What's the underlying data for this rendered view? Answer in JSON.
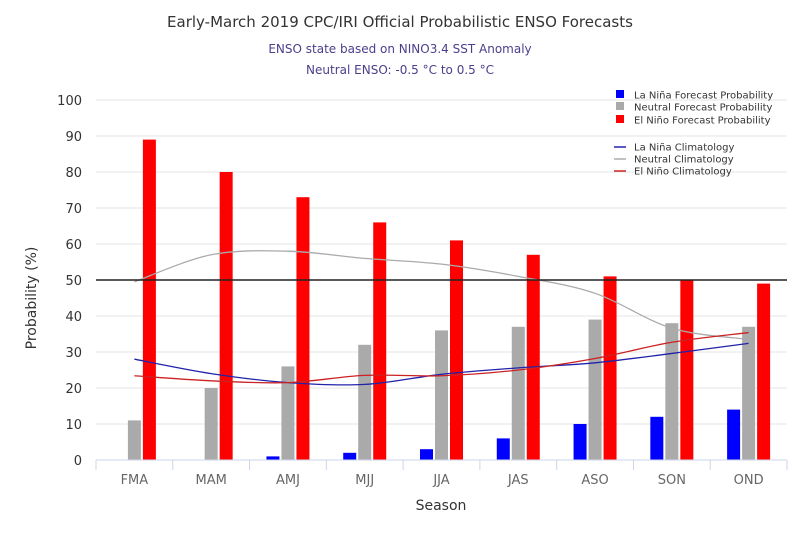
{
  "chart_data": {
    "type": "bar",
    "title": "Early-March 2019 CPC/IRI Official Probabilistic ENSO Forecasts",
    "subtitle_lines": [
      "ENSO state based on NINO3.4 SST Anomaly",
      "Neutral ENSO: -0.5 °C to 0.5 °C"
    ],
    "xlabel": "Season",
    "ylabel": "Probability (%)",
    "ylim": [
      0,
      100
    ],
    "yticks": [
      0,
      10,
      20,
      30,
      40,
      50,
      60,
      70,
      80,
      90,
      100
    ],
    "grid": true,
    "reference_line": 50,
    "legend_position": "top-right",
    "categories": [
      "FMA",
      "MAM",
      "AMJ",
      "MJJ",
      "JJA",
      "JAS",
      "ASO",
      "SON",
      "OND"
    ],
    "series": [
      {
        "name": "La Niña Forecast Probability",
        "kind": "bar",
        "color": "#0000ff",
        "values": [
          0,
          0,
          1,
          2,
          3,
          6,
          10,
          12,
          14
        ]
      },
      {
        "name": "Neutral Forecast Probability",
        "kind": "bar",
        "color": "#aaaaaa",
        "values": [
          11,
          20,
          26,
          32,
          36,
          37,
          39,
          38,
          37
        ]
      },
      {
        "name": "El Niño Forecast Probability",
        "kind": "bar",
        "color": "#ff0000",
        "values": [
          89,
          80,
          73,
          66,
          61,
          57,
          51,
          50,
          49
        ]
      },
      {
        "name": "La Niña Climatology",
        "kind": "line",
        "color": "#2222aa",
        "values": [
          28,
          24,
          21.5,
          21,
          23.8,
          25.6,
          27,
          29.6,
          32.4
        ]
      },
      {
        "name": "Neutral Climatology",
        "kind": "line",
        "color": "#aaaaaa",
        "values": [
          49.5,
          57,
          58,
          56,
          54.4,
          51,
          46.3,
          36.6,
          33.5
        ]
      },
      {
        "name": "El Niño Climatology",
        "kind": "line",
        "color": "#cc2222",
        "values": [
          23.4,
          22,
          21.5,
          23.5,
          23.4,
          25,
          28.2,
          32.7,
          35.4
        ]
      }
    ]
  }
}
